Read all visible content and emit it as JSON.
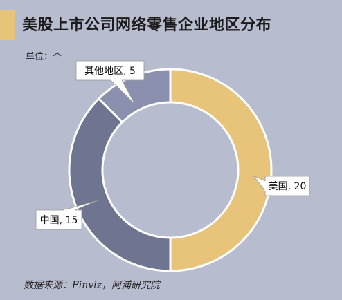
{
  "header": {
    "title": "美股上市公司网络零售企业地区分布",
    "unit": "单位：个"
  },
  "footer": {
    "source": "数据来源：Finviz，阿浦研究院"
  },
  "colors": {
    "background": "#b8bccf",
    "accent_bar": "#e7c47a"
  },
  "chart_data": {
    "type": "pie",
    "donut": true,
    "title": "美股上市公司网络零售企业地区分布",
    "unit": "个",
    "slices": [
      {
        "name": "美国",
        "value": 20,
        "label": "美国, 20",
        "color": "#e7c47a"
      },
      {
        "name": "中国",
        "value": 15,
        "label": "中国, 15",
        "color": "#6f7490"
      },
      {
        "name": "其他地区",
        "value": 5,
        "label": "其他地区, 5",
        "color": "#8a90ad"
      }
    ]
  }
}
